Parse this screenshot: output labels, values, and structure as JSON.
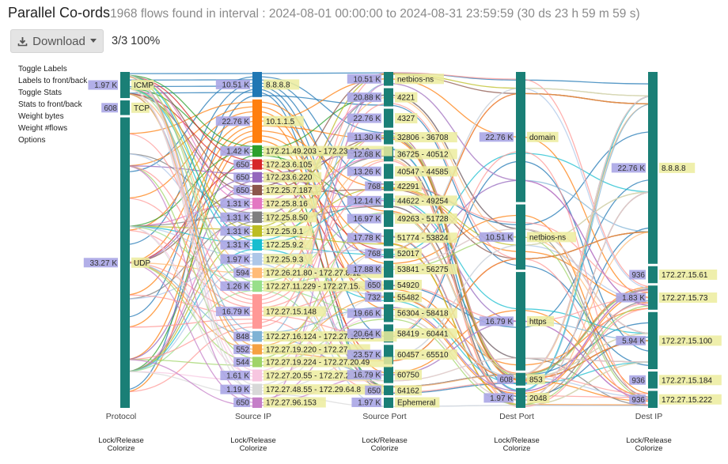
{
  "header": {
    "title": "Parallel Co-ords",
    "subtitle": "1968 flows found in interval : 2024-08-01 00:00:00 to 2024-08-31 23:59:59 (30 ds 23 h 59 m 59 s)"
  },
  "toolbar": {
    "download_label": "Download",
    "progress": "3/3 100%"
  },
  "menu": [
    "Toggle Labels",
    "Labels to front/back",
    "Toggle Stats",
    "Stats to front/back",
    "Weight bytes",
    "Weight #flows",
    "Options"
  ],
  "colors": {
    "axis": "#1a7f76",
    "stat_bg": "#aaa6e6",
    "label_bg": "#ecec9e"
  },
  "chart_data": {
    "type": "parallel-coordinates",
    "dimensions": [
      {
        "name": "Protocol",
        "controls": [
          "Lock/Release",
          "Colorize"
        ],
        "categories": [
          {
            "label": "ICMP",
            "stat": "1.97 K",
            "value": 1970
          },
          {
            "label": "TCP",
            "stat": "608",
            "value": 608
          },
          {
            "label": "UDP",
            "stat": "33.27 K",
            "value": 33270
          }
        ]
      },
      {
        "name": "Source IP",
        "controls": [
          "Lock/Release",
          "Colorize"
        ],
        "categories": [
          {
            "label": "8.8.8.8",
            "stat": "10.51 K",
            "value": 10510,
            "color": "#1f77b4"
          },
          {
            "label": "10.1.1.5",
            "stat": "22.76 K",
            "value": 22760,
            "color": "#ff7f0e"
          },
          {
            "label": "172.21.49.203 - 172.23.50.10",
            "stat": "1.42 K",
            "value": 1420,
            "color": "#2ca02c"
          },
          {
            "label": "172.23.6.105",
            "stat": "650",
            "value": 650,
            "color": "#d62728"
          },
          {
            "label": "172.23.6.220",
            "stat": "650",
            "value": 650,
            "color": "#9467bd"
          },
          {
            "label": "172.25.7.187",
            "stat": "650",
            "value": 650,
            "color": "#8c564b"
          },
          {
            "label": "172.25.8.16",
            "stat": "1.31 K",
            "value": 1310,
            "color": "#e377c2"
          },
          {
            "label": "172.25.8.50",
            "stat": "1.31 K",
            "value": 1310,
            "color": "#7f7f7f"
          },
          {
            "label": "172.25.9.1",
            "stat": "1.31 K",
            "value": 1310,
            "color": "#bcbd22"
          },
          {
            "label": "172.25.9.2",
            "stat": "1.31 K",
            "value": 1310,
            "color": "#17becf"
          },
          {
            "label": "172.25.9.3",
            "stat": "1.97 K",
            "value": 1970,
            "color": "#aec7e8"
          },
          {
            "label": "172.26.21.80 - 172.27.8.12",
            "stat": "594",
            "value": 594,
            "color": "#ffbb78"
          },
          {
            "label": "172.27.11.229 - 172.27.15.",
            "stat": "1.26 K",
            "value": 1260,
            "color": "#98df8a"
          },
          {
            "label": "172.27.15.148",
            "stat": "16.79 K",
            "value": 16790,
            "color": "#ff9896"
          },
          {
            "label": "172.27.16.124 - 172.27.18.233",
            "stat": "848",
            "value": 848,
            "color": "#7fb3d5"
          },
          {
            "label": "172.27.19.220 - 172.27.",
            "stat": "552",
            "value": 552,
            "color": "#f5a142"
          },
          {
            "label": "172.27.19.224 - 172.27.20.49",
            "stat": "544",
            "value": 544,
            "color": "#a0d468"
          },
          {
            "label": "172.27.20.55 - 172.27.2",
            "stat": "1.61 K",
            "value": 1610,
            "color": "#f7c6e0"
          },
          {
            "label": "172.27.48.55 - 172.29.64.8",
            "stat": "1.19 K",
            "value": 1190,
            "color": "#d8d8d8"
          },
          {
            "label": "172.27.96.153",
            "stat": "650",
            "value": 650,
            "color": "#c57fc8"
          }
        ]
      },
      {
        "name": "Source Port",
        "controls": [
          "Lock/Release",
          "Colorize"
        ],
        "categories": [
          {
            "label": "netbios-ns",
            "stat": "10.51 K",
            "value": 10510
          },
          {
            "label": "4221",
            "stat": "20.88 K",
            "value": 20880
          },
          {
            "label": "4327",
            "stat": "22.76 K",
            "value": 22760
          },
          {
            "label": "32806 - 36708",
            "stat": "11.30 K",
            "value": 11300
          },
          {
            "label": "36725 - 40512",
            "stat": "12.68 K",
            "value": 12680
          },
          {
            "label": "40547 - 44585",
            "stat": "13.26 K",
            "value": 13260
          },
          {
            "label": "42291",
            "stat": "768",
            "value": 768
          },
          {
            "label": "44622 - 49254",
            "stat": "12.14 K",
            "value": 12140
          },
          {
            "label": "49263 - 51728",
            "stat": "16.97 K",
            "value": 16970
          },
          {
            "label": "51774 - 53824",
            "stat": "17.78 K",
            "value": 17780
          },
          {
            "label": "52017",
            "stat": "768",
            "value": 768
          },
          {
            "label": "53841 - 56275",
            "stat": "17.88 K",
            "value": 17880
          },
          {
            "label": "54920",
            "stat": "650",
            "value": 650
          },
          {
            "label": "55482",
            "stat": "732",
            "value": 732
          },
          {
            "label": "56304 - 58418",
            "stat": "19.66 K",
            "value": 19660
          },
          {
            "label": "58419 - 60441",
            "stat": "20.64 K",
            "value": 20640
          },
          {
            "label": "60457 - 65510",
            "stat": "23.57 K",
            "value": 23570
          },
          {
            "label": "60750",
            "stat": "16.79 K",
            "value": 16790
          },
          {
            "label": "64162",
            "stat": "650",
            "value": 650
          },
          {
            "label": "Ephemeral",
            "stat": "1.97 K",
            "value": 1970
          }
        ]
      },
      {
        "name": "Dest Port",
        "controls": [
          "Lock/Release",
          "Colorize"
        ],
        "categories": [
          {
            "label": "domain",
            "stat": "22.76 K",
            "value": 22760
          },
          {
            "label": "netbios-ns",
            "stat": "10.51 K",
            "value": 10510
          },
          {
            "label": "https",
            "stat": "16.79 K",
            "value": 16790
          },
          {
            "label": "853",
            "stat": "608",
            "value": 608
          },
          {
            "label": "2048",
            "stat": "1.97 K",
            "value": 1970
          }
        ]
      },
      {
        "name": "Dest IP",
        "controls": [
          "Lock/Release",
          "Colorize"
        ],
        "categories": [
          {
            "label": "8.8.8.8",
            "stat": "22.76 K",
            "value": 22760
          },
          {
            "label": "172.27.15.61",
            "stat": "936",
            "value": 936
          },
          {
            "label": "172.27.15.73",
            "stat": "1.83 K",
            "value": 1830
          },
          {
            "label": "172.27.15.100",
            "stat": "5.94 K",
            "value": 5940
          },
          {
            "label": "172.27.15.184",
            "stat": "936",
            "value": 936
          },
          {
            "label": "172.27.15.222",
            "stat": "936",
            "value": 936
          }
        ]
      }
    ]
  }
}
